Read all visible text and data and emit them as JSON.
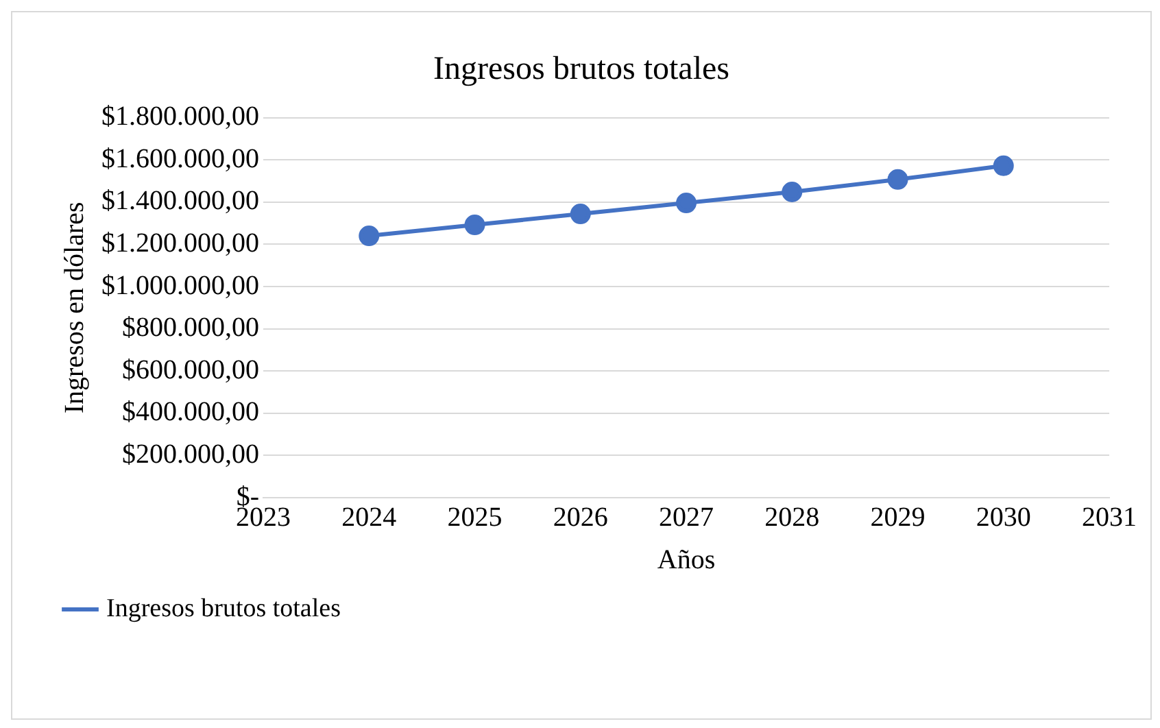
{
  "chart_data": {
    "type": "line",
    "title": "Ingresos brutos totales",
    "xlabel": "Años",
    "ylabel": "Ingresos en dólares",
    "x": [
      2024,
      2025,
      2026,
      2027,
      2028,
      2029,
      2030
    ],
    "series": [
      {
        "name": "Ingresos brutos totales",
        "color": "#4472c4",
        "values": [
          1240000,
          1292000,
          1344000,
          1396000,
          1448000,
          1507000,
          1572000
        ]
      }
    ],
    "xlim": [
      2023,
      2031
    ],
    "xticks": [
      2023,
      2024,
      2025,
      2026,
      2027,
      2028,
      2029,
      2030,
      2031
    ],
    "ylim": [
      0,
      1800000
    ],
    "yticks": [
      {
        "value": 0,
        "label": "$-"
      },
      {
        "value": 200000,
        "label": "$200.000,00"
      },
      {
        "value": 400000,
        "label": "$400.000,00"
      },
      {
        "value": 600000,
        "label": "$600.000,00"
      },
      {
        "value": 800000,
        "label": "$800.000,00"
      },
      {
        "value": 1000000,
        "label": "$1.000.000,00"
      },
      {
        "value": 1200000,
        "label": "$1.200.000,00"
      },
      {
        "value": 1400000,
        "label": "$1.400.000,00"
      },
      {
        "value": 1600000,
        "label": "$1.600.000,00"
      },
      {
        "value": 1800000,
        "label": "$1.800.000,00"
      }
    ],
    "grid": "y",
    "legend": "bottom left",
    "marker": "circle",
    "line_style": "solid"
  }
}
